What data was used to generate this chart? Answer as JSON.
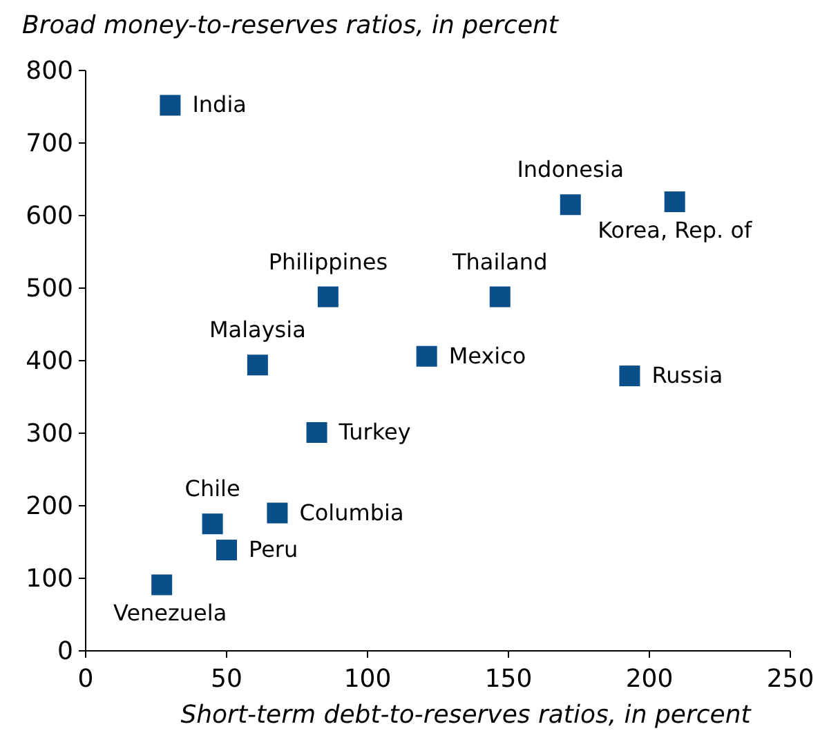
{
  "chart_data": {
    "type": "scatter",
    "title": "Broad money-to-reserves ratios, in percent",
    "xlabel": "Short-term debt-to-reserves ratios, in percent",
    "x": [
      30,
      172,
      209,
      86,
      147,
      61,
      121,
      193,
      82,
      45,
      68,
      50,
      27
    ],
    "values": [
      752,
      615,
      619,
      488,
      488,
      394,
      406,
      379,
      301,
      175,
      190,
      139,
      91
    ],
    "color": "#0b4f8a",
    "marker": "square",
    "grid": false,
    "xlim": [
      0,
      250
    ],
    "xticks": [
      0,
      50,
      100,
      150,
      200,
      250
    ],
    "ylim": [
      0,
      800
    ],
    "yticks": [
      0,
      100,
      200,
      300,
      400,
      500,
      600,
      700,
      800
    ],
    "annotations": [
      {
        "text": "India",
        "x": 30,
        "y": 752
      },
      {
        "text": "Indonesia",
        "x": 172,
        "y": 615
      },
      {
        "text": "Korea, Rep. of",
        "x": 209,
        "y": 619
      },
      {
        "text": "Philippines",
        "x": 86,
        "y": 488
      },
      {
        "text": "Thailand",
        "x": 147,
        "y": 488
      },
      {
        "text": "Malaysia",
        "x": 61,
        "y": 394
      },
      {
        "text": "Mexico",
        "x": 121,
        "y": 406
      },
      {
        "text": "Russia",
        "x": 193,
        "y": 379
      },
      {
        "text": "Turkey",
        "x": 82,
        "y": 301
      },
      {
        "text": "Chile",
        "x": 45,
        "y": 175
      },
      {
        "text": "Columbia",
        "x": 68,
        "y": 190
      },
      {
        "text": "Peru",
        "x": 50,
        "y": 139
      },
      {
        "text": "Venezuela",
        "x": 27,
        "y": 91
      }
    ]
  }
}
